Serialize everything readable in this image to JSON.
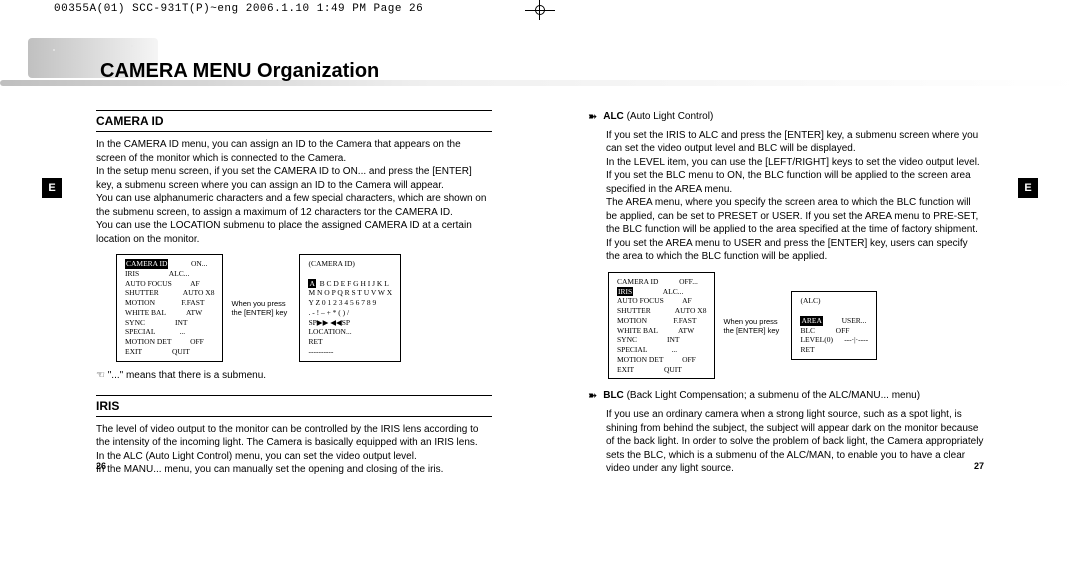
{
  "header_strip": "00355A(01) SCC-931T(P)~eng  2006.1.10  1:49 PM  Page 26",
  "banner_title": "CAMERA MENU Organization",
  "side_tab_label": "E",
  "left": {
    "section1_title": "CAMERA ID",
    "section1_body": "In the CAMERA ID menu, you can assign an ID to the Camera that appears on the screen of the monitor which is connected to the Camera.\nIn the setup menu screen, if you set the CAMERA ID to ON... and press the [ENTER] key, a submenu screen where you can assign an ID to the Camera will appear.\nYou can use alphanumeric characters and a few special characters, which are shown on the submenu screen, to assign a maximum of 12 characters tor the CAMERA ID.\nYou can use the LOCATION submenu to place the assigned CAMERA ID at a certain location on the monitor.",
    "menu_left_title": "CAMERA ID",
    "menu_left_rows": [
      [
        "IRIS",
        "ALC..."
      ],
      [
        "AUTO FOCUS",
        "AF"
      ],
      [
        "SHUTTER",
        "AUTO X8"
      ],
      [
        "MOTION",
        "F.FAST"
      ],
      [
        "WHITE BAL",
        "ATW"
      ],
      [
        "SYNC",
        "INT"
      ],
      [
        "SPECIAL",
        "..."
      ],
      [
        "MOTION DET",
        "OFF"
      ],
      [
        "EXIT",
        "QUIT"
      ]
    ],
    "menu_left_first_val": "ON...",
    "between": "When you press the [ENTER] key",
    "menu_right_title": "(CAMERA ID)",
    "menu_right_body": "  B C D E F G H I J K L\nM N O P Q R S T U V W X\nY Z 0 1 2 3 4 5 6 7 8 9\n. - ! – + * ( ) /\nSP▶▶ ◀◀SP\nLOCATION...\nRET\n----------",
    "menu_right_hi": "A",
    "note": "☜ \"...\" means that there is a submenu.",
    "section2_title": "IRIS",
    "section2_body": "The level of video output to the monitor can be controlled by the IRIS lens according to the intensity of the incoming light. The Camera is basically equipped with an IRIS lens.\nIn the ALC (Auto Light Control) menu, you can set the video output level.\nIn the MANU... menu, you can manually set the opening and closing of the iris.",
    "page_num": "26"
  },
  "right": {
    "item1_label": "ALC",
    "item1_sub": "(Auto Light Control)",
    "item1_body": "If you set the IRIS to ALC and press the [ENTER] key, a submenu screen where you can set the video output level and BLC will be displayed.\nIn the LEVEL item, you can use the [LEFT/RIGHT] keys to set the video output level.\nIf you set the BLC menu to ON, the BLC function will be applied to the screen area specified in the AREA menu.\nThe AREA menu, where you specify the screen area to which the BLC function will be applied, can be set to PRESET or USER. If you set the AREA menu to PRE-SET, the BLC function will be applied to the area specified at the time of factory shipment. If you set the AREA menu to USER and press the [ENTER] key, users can specify the area to which the BLC function will be applied.",
    "menu_left_rows": [
      [
        "CAMERA ID",
        "OFF..."
      ],
      [
        "AUTO FOCUS",
        "AF"
      ],
      [
        "SHUTTER",
        "AUTO X8"
      ],
      [
        "MOTION",
        "F.FAST"
      ],
      [
        "WHITE BAL",
        "ATW"
      ],
      [
        "SYNC",
        "INT"
      ],
      [
        "SPECIAL",
        "..."
      ],
      [
        "MOTION DET",
        "OFF"
      ],
      [
        "EXIT",
        "QUIT"
      ]
    ],
    "menu_left_hi_row": "IRIS",
    "menu_left_hi_val": "ALC...",
    "between": "When you press the [ENTER] key",
    "menu_right_title": "(ALC)",
    "menu_right_rows": [
      [
        "BLC",
        "OFF"
      ],
      [
        "LEVEL(0)",
        "---·|·----"
      ],
      [
        "RET",
        ""
      ]
    ],
    "menu_right_hi_row": "AREA",
    "menu_right_hi_val": "USER...",
    "item2_label": "BLC",
    "item2_sub": "(Back Light Compensation; a submenu of the ALC/MANU... menu)",
    "item2_body": "If you use an ordinary camera when a strong light source, such as a spot light, is shining from behind the subject, the subject will appear dark on the monitor because of the back light. In order to solve the problem of back light, the Camera appropriately sets the BLC, which is a submenu of the ALC/MAN, to enable you to have a clear video under any light source.",
    "page_num": "27"
  }
}
